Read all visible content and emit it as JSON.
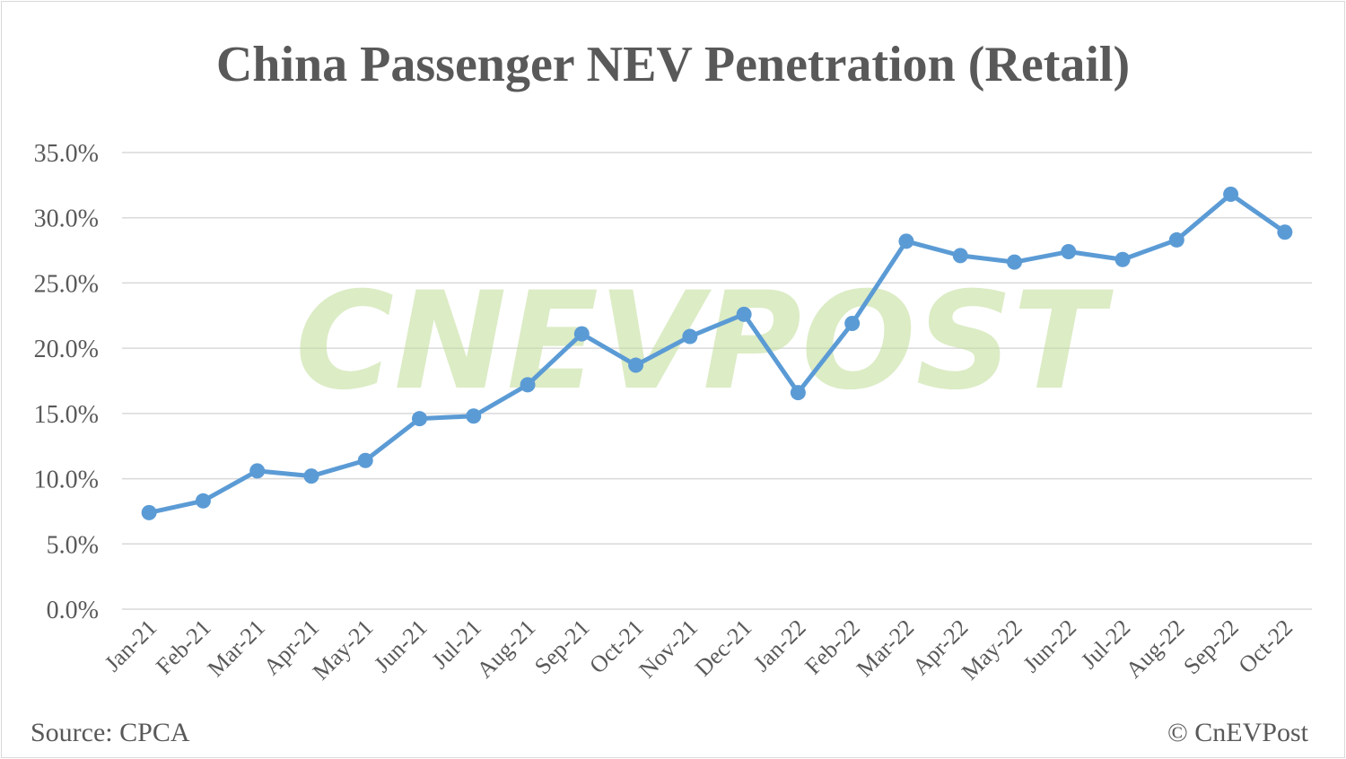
{
  "chart_data": {
    "type": "line",
    "title": "China Passenger NEV Penetration (Retail)",
    "xlabel": "",
    "ylabel": "",
    "categories": [
      "Jan-21",
      "Feb-21",
      "Mar-21",
      "Apr-21",
      "May-21",
      "Jun-21",
      "Jul-21",
      "Aug-21",
      "Sep-21",
      "Oct-21",
      "Nov-21",
      "Dec-21",
      "Jan-22",
      "Feb-22",
      "Mar-22",
      "Apr-22",
      "May-22",
      "Jun-22",
      "Jul-22",
      "Aug-22",
      "Sep-22",
      "Oct-22"
    ],
    "values": [
      7.4,
      8.3,
      10.6,
      10.2,
      11.4,
      14.6,
      14.8,
      17.2,
      21.1,
      18.7,
      20.9,
      22.6,
      16.6,
      21.9,
      28.2,
      27.1,
      26.6,
      27.4,
      26.8,
      28.3,
      31.8,
      28.9
    ],
    "ylim": [
      0,
      35
    ],
    "yticks": [
      "0.0%",
      "5.0%",
      "10.0%",
      "15.0%",
      "20.0%",
      "25.0%",
      "30.0%",
      "35.0%"
    ],
    "grid": true,
    "legend": "none",
    "line_color": "#5b9bd5",
    "grid_color": "#d9d9d9"
  },
  "source": "Source: CPCA",
  "copyright": "© CnEVPost",
  "watermark": "CnEVPost"
}
